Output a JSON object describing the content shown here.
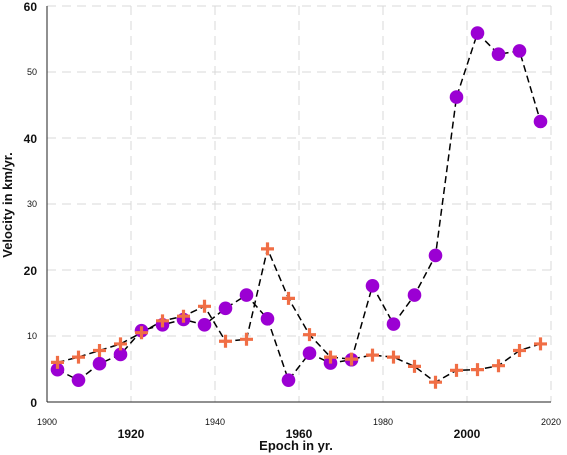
{
  "chart_data": {
    "type": "line",
    "xlabel": "Epoch in yr.",
    "ylabel": "Velocity in km/yr.",
    "xlim": [
      1900,
      2020
    ],
    "ylim": [
      0,
      60
    ],
    "grid": true,
    "x_ticks": [
      {
        "value": 1900,
        "label": "1900",
        "major": false
      },
      {
        "value": 1920,
        "label": "1920",
        "major": true
      },
      {
        "value": 1940,
        "label": "1940",
        "major": false
      },
      {
        "value": 1960,
        "label": "1960",
        "major": true
      },
      {
        "value": 1980,
        "label": "1980",
        "major": false
      },
      {
        "value": 2000,
        "label": "2000",
        "major": true
      },
      {
        "value": 2020,
        "label": "2020",
        "major": false
      }
    ],
    "y_ticks": [
      {
        "value": 0,
        "label": "0",
        "major": true
      },
      {
        "value": 10,
        "label": "10",
        "major": false
      },
      {
        "value": 20,
        "label": "20",
        "major": true
      },
      {
        "value": 30,
        "label": "30",
        "major": false
      },
      {
        "value": 40,
        "label": "40",
        "major": true
      },
      {
        "value": 50,
        "label": "50",
        "major": false
      },
      {
        "value": 60,
        "label": "60",
        "major": true
      }
    ],
    "series": [
      {
        "marker": "circle",
        "color": "#9b00d3",
        "x": [
          1902.5,
          1907.5,
          1912.5,
          1917.5,
          1922.5,
          1927.5,
          1932.5,
          1937.5,
          1942.5,
          1947.5,
          1952.5,
          1957.5,
          1962.5,
          1967.5,
          1972.5,
          1977.5,
          1982.5,
          1987.5,
          1992.5,
          1997.5,
          2002.5,
          2007.5,
          2012.5,
          2017.5
        ],
        "y": [
          4.9,
          3.3,
          5.8,
          7.2,
          10.8,
          11.7,
          12.5,
          11.7,
          14.2,
          16.2,
          12.6,
          3.3,
          7.4,
          5.9,
          6.4,
          17.6,
          11.8,
          16.2,
          22.2,
          46.2,
          55.9,
          52.7,
          53.2,
          42.5
        ]
      },
      {
        "marker": "plus",
        "color": "#f06e45",
        "x": [
          1902.5,
          1907.5,
          1912.5,
          1917.5,
          1922.5,
          1927.5,
          1932.5,
          1937.5,
          1942.5,
          1947.5,
          1952.5,
          1957.5,
          1962.5,
          1967.5,
          1972.5,
          1977.5,
          1982.5,
          1987.5,
          1992.5,
          1997.5,
          2002.5,
          2007.5,
          2012.5,
          2017.5
        ],
        "y": [
          6.0,
          6.8,
          7.8,
          8.8,
          10.5,
          12.3,
          13.0,
          14.5,
          9.2,
          9.5,
          23.2,
          15.7,
          10.2,
          6.8,
          6.5,
          7.1,
          6.8,
          5.4,
          3.0,
          4.8,
          4.9,
          5.5,
          7.8,
          8.8
        ]
      }
    ]
  }
}
